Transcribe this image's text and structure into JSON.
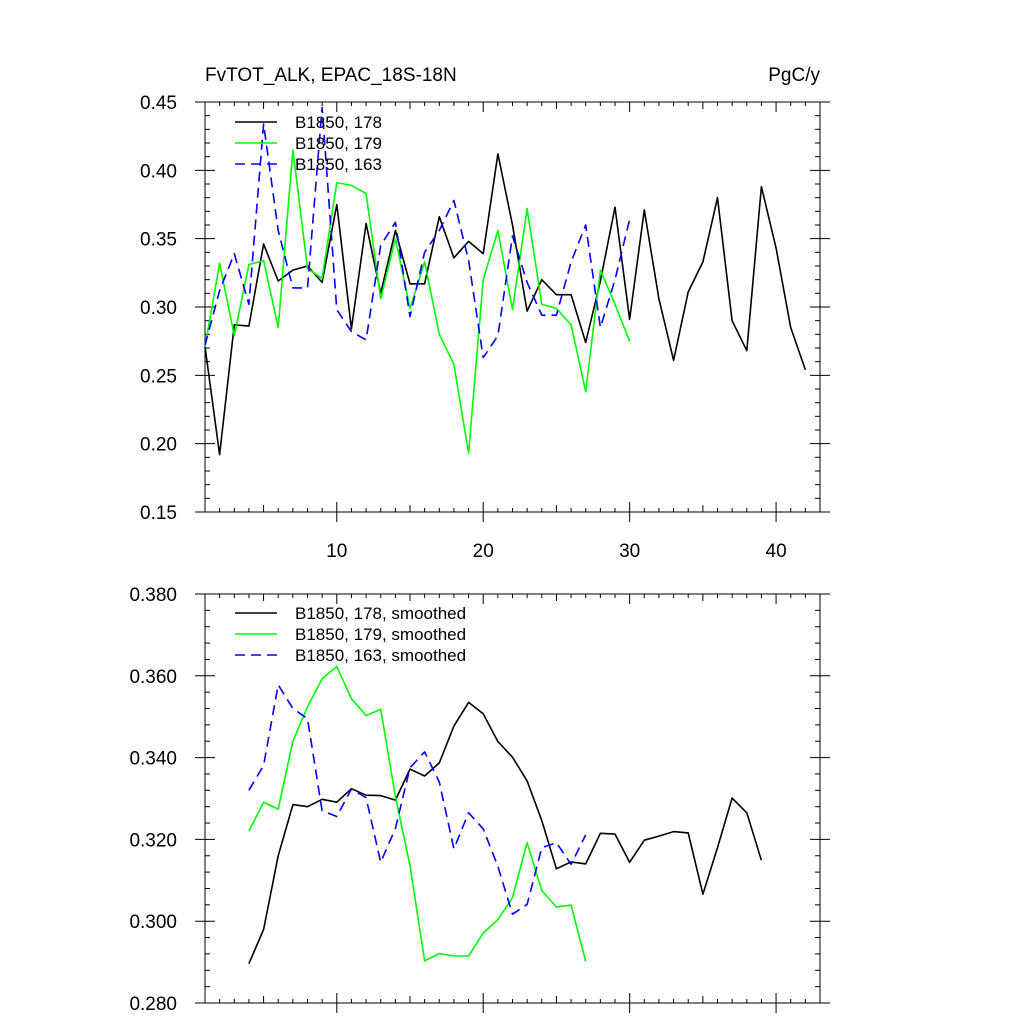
{
  "chart_data": [
    {
      "type": "line",
      "title": "FvTOT_ALK, EPAC_18S-18N",
      "units": "PgC/y",
      "xlim": [
        1,
        43
      ],
      "ylim": [
        0.15,
        0.45
      ],
      "xticks": [
        10,
        20,
        30,
        40
      ],
      "yticks": [
        0.15,
        0.2,
        0.25,
        0.3,
        0.35,
        0.4,
        0.45
      ],
      "ytick_labels": [
        "0.15",
        "0.20",
        "0.25",
        "0.30",
        "0.35",
        "0.40",
        "0.45"
      ],
      "legend_location": "top-left",
      "series": [
        {
          "name": "B1850, 178",
          "color": "#000000",
          "dash": "solid",
          "x": [
            1,
            2,
            3,
            4,
            5,
            6,
            7,
            8,
            9,
            10,
            11,
            12,
            13,
            14,
            15,
            16,
            17,
            18,
            19,
            20,
            21,
            22,
            23,
            24,
            25,
            26,
            27,
            28,
            29,
            30,
            31,
            32,
            33,
            34,
            35,
            36,
            37,
            38,
            39,
            40,
            41,
            42
          ],
          "values": [
            0.271,
            0.192,
            0.287,
            0.286,
            0.346,
            0.319,
            0.327,
            0.33,
            0.318,
            0.375,
            0.284,
            0.361,
            0.31,
            0.356,
            0.317,
            0.317,
            0.366,
            0.336,
            0.348,
            0.339,
            0.412,
            0.36,
            0.297,
            0.32,
            0.309,
            0.309,
            0.274,
            0.319,
            0.373,
            0.291,
            0.371,
            0.306,
            0.261,
            0.311,
            0.333,
            0.38,
            0.29,
            0.268,
            0.388,
            0.343,
            0.285,
            0.254
          ]
        },
        {
          "name": "B1850, 179",
          "color": "#00ff00",
          "dash": "solid",
          "x": [
            1,
            2,
            3,
            4,
            5,
            6,
            7,
            8,
            9,
            10,
            11,
            12,
            13,
            14,
            15,
            16,
            17,
            18,
            19,
            20,
            21,
            22,
            23,
            24,
            25,
            26,
            27,
            28,
            29,
            30
          ],
          "values": [
            0.271,
            0.332,
            0.279,
            0.331,
            0.334,
            0.285,
            0.415,
            0.328,
            0.321,
            0.391,
            0.389,
            0.383,
            0.306,
            0.35,
            0.299,
            0.333,
            0.28,
            0.258,
            0.193,
            0.32,
            0.356,
            0.298,
            0.372,
            0.302,
            0.299,
            0.287,
            0.238,
            0.327,
            0.302,
            0.275
          ]
        },
        {
          "name": "B1850, 163",
          "color": "#0000ff",
          "dash": "dashed",
          "x": [
            1,
            2,
            3,
            4,
            5,
            6,
            7,
            8,
            9,
            10,
            11,
            12,
            13,
            14,
            15,
            16,
            17,
            18,
            19,
            20,
            21,
            22,
            23,
            24,
            25,
            26,
            27,
            28,
            29,
            30
          ],
          "values": [
            0.272,
            0.312,
            0.339,
            0.302,
            0.434,
            0.356,
            0.314,
            0.314,
            0.446,
            0.298,
            0.282,
            0.276,
            0.345,
            0.362,
            0.293,
            0.34,
            0.356,
            0.378,
            0.334,
            0.263,
            0.279,
            0.352,
            0.318,
            0.294,
            0.294,
            0.333,
            0.36,
            0.285,
            0.32,
            0.364
          ]
        }
      ]
    },
    {
      "type": "line",
      "xlim": [
        1,
        43
      ],
      "ylim": [
        0.28,
        0.38
      ],
      "xticks": [
        10,
        20,
        30,
        40
      ],
      "yticks": [
        0.28,
        0.3,
        0.32,
        0.34,
        0.36,
        0.38
      ],
      "ytick_labels": [
        "0.280",
        "0.300",
        "0.320",
        "0.340",
        "0.360",
        "0.380"
      ],
      "legend_location": "top-left",
      "series": [
        {
          "name": "B1850, 178, smoothed",
          "color": "#000000",
          "dash": "solid",
          "x": [
            4,
            5,
            6,
            7,
            8,
            9,
            10,
            11,
            12,
            13,
            14,
            15,
            16,
            17,
            18,
            19,
            20,
            21,
            22,
            23,
            24,
            25,
            26,
            27,
            28,
            29,
            30,
            31,
            32,
            33,
            34,
            35,
            36,
            37,
            38,
            39
          ],
          "values": [
            0.2896,
            0.298,
            0.316,
            0.3285,
            0.328,
            0.3298,
            0.3291,
            0.3324,
            0.3308,
            0.3307,
            0.3296,
            0.3372,
            0.3355,
            0.3387,
            0.3477,
            0.3535,
            0.3507,
            0.3439,
            0.3401,
            0.3343,
            0.3246,
            0.3128,
            0.3145,
            0.314,
            0.3215,
            0.3213,
            0.3144,
            0.3198,
            0.3208,
            0.3219,
            0.3216,
            0.3066,
            0.318,
            0.3301,
            0.3265,
            0.3149
          ]
        },
        {
          "name": "B1850, 179, smoothed",
          "color": "#00ff00",
          "dash": "solid",
          "x": [
            4,
            5,
            6,
            7,
            8,
            9,
            10,
            11,
            12,
            13,
            14,
            15,
            16,
            17,
            18,
            19,
            20,
            21,
            22,
            23,
            24,
            25,
            26,
            27
          ],
          "values": [
            0.322,
            0.3291,
            0.3274,
            0.344,
            0.3524,
            0.3593,
            0.3623,
            0.3544,
            0.3503,
            0.3518,
            0.3305,
            0.3136,
            0.2903,
            0.2921,
            0.2915,
            0.2915,
            0.2971,
            0.3004,
            0.3058,
            0.3192,
            0.3075,
            0.3035,
            0.3039,
            0.2902
          ]
        },
        {
          "name": "B1850, 163, smoothed",
          "color": "#0000ff",
          "dash": "dashed",
          "x": [
            4,
            5,
            6,
            7,
            8,
            9,
            10,
            11,
            12,
            13,
            14,
            15,
            16,
            17,
            18,
            19,
            20,
            21,
            22,
            23,
            24,
            25,
            26,
            27
          ],
          "values": [
            0.332,
            0.3381,
            0.3578,
            0.352,
            0.3495,
            0.327,
            0.3256,
            0.3323,
            0.3302,
            0.3144,
            0.3227,
            0.3375,
            0.3414,
            0.334,
            0.3177,
            0.3265,
            0.3226,
            0.3134,
            0.3017,
            0.3041,
            0.318,
            0.3192,
            0.3139,
            0.3211
          ]
        }
      ]
    }
  ]
}
